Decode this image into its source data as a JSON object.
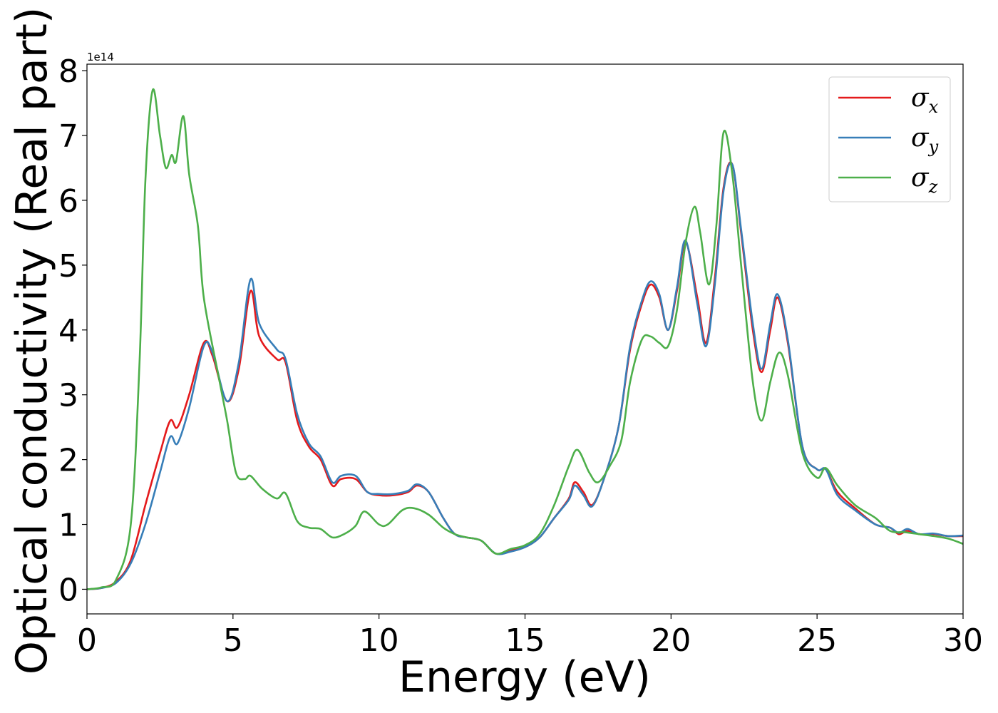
{
  "chart_data": {
    "type": "line",
    "xlabel": "Energy (eV)",
    "ylabel": "Optical conductivity (Real part)",
    "y_offset_label": "1e14",
    "xlim": [
      0,
      30
    ],
    "ylim": [
      -0.38,
      8.1
    ],
    "x_ticks": [
      0,
      5,
      10,
      15,
      20,
      25,
      30
    ],
    "y_ticks": [
      0,
      1,
      2,
      3,
      4,
      5,
      6,
      7,
      8
    ],
    "legend_position": "top-right",
    "series": [
      {
        "name": "σx",
        "symbol": "σ",
        "subscript": "x",
        "color": "#e41a1c",
        "points": [
          [
            0,
            0
          ],
          [
            0.5,
            0.02
          ],
          [
            1.0,
            0.12
          ],
          [
            1.5,
            0.45
          ],
          [
            2.0,
            1.3
          ],
          [
            2.5,
            2.1
          ],
          [
            2.85,
            2.6
          ],
          [
            3.1,
            2.5
          ],
          [
            3.5,
            3.0
          ],
          [
            4.0,
            3.8
          ],
          [
            4.3,
            3.6
          ],
          [
            4.8,
            2.9
          ],
          [
            5.2,
            3.4
          ],
          [
            5.6,
            4.6
          ],
          [
            5.9,
            3.9
          ],
          [
            6.5,
            3.55
          ],
          [
            6.8,
            3.5
          ],
          [
            7.2,
            2.6
          ],
          [
            7.6,
            2.2
          ],
          [
            8.0,
            2.0
          ],
          [
            8.4,
            1.6
          ],
          [
            8.7,
            1.7
          ],
          [
            9.2,
            1.7
          ],
          [
            9.6,
            1.5
          ],
          [
            10.0,
            1.45
          ],
          [
            10.5,
            1.45
          ],
          [
            11.0,
            1.5
          ],
          [
            11.3,
            1.6
          ],
          [
            11.7,
            1.5
          ],
          [
            12.2,
            1.1
          ],
          [
            12.6,
            0.85
          ],
          [
            13.0,
            0.8
          ],
          [
            13.5,
            0.75
          ],
          [
            14.0,
            0.55
          ],
          [
            14.5,
            0.6
          ],
          [
            15.0,
            0.65
          ],
          [
            15.5,
            0.8
          ],
          [
            16.0,
            1.1
          ],
          [
            16.5,
            1.4
          ],
          [
            16.7,
            1.65
          ],
          [
            17.0,
            1.5
          ],
          [
            17.3,
            1.3
          ],
          [
            17.7,
            1.7
          ],
          [
            18.2,
            2.5
          ],
          [
            18.6,
            3.7
          ],
          [
            19.0,
            4.4
          ],
          [
            19.3,
            4.7
          ],
          [
            19.6,
            4.5
          ],
          [
            19.9,
            4.0
          ],
          [
            20.2,
            4.6
          ],
          [
            20.5,
            5.35
          ],
          [
            20.9,
            4.5
          ],
          [
            21.2,
            3.8
          ],
          [
            21.5,
            4.8
          ],
          [
            21.8,
            6.2
          ],
          [
            22.1,
            6.55
          ],
          [
            22.4,
            5.5
          ],
          [
            22.8,
            4.0
          ],
          [
            23.1,
            3.35
          ],
          [
            23.4,
            4.0
          ],
          [
            23.65,
            4.5
          ],
          [
            24.0,
            3.8
          ],
          [
            24.5,
            2.2
          ],
          [
            25.0,
            1.85
          ],
          [
            25.3,
            1.85
          ],
          [
            25.7,
            1.5
          ],
          [
            26.3,
            1.25
          ],
          [
            27.0,
            1.0
          ],
          [
            27.5,
            0.95
          ],
          [
            27.8,
            0.85
          ],
          [
            28.1,
            0.9
          ],
          [
            28.5,
            0.85
          ],
          [
            29.0,
            0.85
          ],
          [
            29.5,
            0.82
          ],
          [
            30.0,
            0.82
          ]
        ]
      },
      {
        "name": "σy",
        "symbol": "σ",
        "subscript": "y",
        "color": "#377eb8",
        "points": [
          [
            0,
            0
          ],
          [
            0.5,
            0.02
          ],
          [
            1.0,
            0.1
          ],
          [
            1.5,
            0.4
          ],
          [
            2.0,
            1.0
          ],
          [
            2.5,
            1.8
          ],
          [
            2.85,
            2.35
          ],
          [
            3.1,
            2.25
          ],
          [
            3.5,
            2.8
          ],
          [
            4.0,
            3.75
          ],
          [
            4.3,
            3.65
          ],
          [
            4.8,
            2.9
          ],
          [
            5.2,
            3.5
          ],
          [
            5.6,
            4.78
          ],
          [
            5.9,
            4.1
          ],
          [
            6.5,
            3.7
          ],
          [
            6.8,
            3.55
          ],
          [
            7.2,
            2.7
          ],
          [
            7.6,
            2.25
          ],
          [
            8.0,
            2.05
          ],
          [
            8.4,
            1.65
          ],
          [
            8.7,
            1.75
          ],
          [
            9.2,
            1.75
          ],
          [
            9.6,
            1.5
          ],
          [
            10.0,
            1.47
          ],
          [
            10.5,
            1.47
          ],
          [
            11.0,
            1.52
          ],
          [
            11.3,
            1.62
          ],
          [
            11.7,
            1.5
          ],
          [
            12.2,
            1.1
          ],
          [
            12.6,
            0.85
          ],
          [
            13.0,
            0.8
          ],
          [
            13.5,
            0.75
          ],
          [
            14.0,
            0.55
          ],
          [
            14.5,
            0.58
          ],
          [
            15.0,
            0.65
          ],
          [
            15.5,
            0.8
          ],
          [
            16.0,
            1.1
          ],
          [
            16.5,
            1.38
          ],
          [
            16.7,
            1.6
          ],
          [
            17.0,
            1.45
          ],
          [
            17.3,
            1.28
          ],
          [
            17.7,
            1.7
          ],
          [
            18.2,
            2.5
          ],
          [
            18.6,
            3.75
          ],
          [
            19.0,
            4.45
          ],
          [
            19.3,
            4.75
          ],
          [
            19.6,
            4.55
          ],
          [
            19.9,
            4.0
          ],
          [
            20.2,
            4.65
          ],
          [
            20.5,
            5.38
          ],
          [
            20.9,
            4.4
          ],
          [
            21.2,
            3.75
          ],
          [
            21.5,
            4.7
          ],
          [
            21.8,
            6.15
          ],
          [
            22.1,
            6.55
          ],
          [
            22.4,
            5.55
          ],
          [
            22.8,
            4.1
          ],
          [
            23.1,
            3.4
          ],
          [
            23.4,
            4.1
          ],
          [
            23.65,
            4.55
          ],
          [
            24.0,
            3.85
          ],
          [
            24.5,
            2.2
          ],
          [
            25.0,
            1.85
          ],
          [
            25.3,
            1.85
          ],
          [
            25.7,
            1.45
          ],
          [
            26.3,
            1.22
          ],
          [
            27.0,
            1.0
          ],
          [
            27.5,
            0.95
          ],
          [
            27.8,
            0.87
          ],
          [
            28.1,
            0.93
          ],
          [
            28.5,
            0.85
          ],
          [
            29.0,
            0.86
          ],
          [
            29.5,
            0.82
          ],
          [
            30.0,
            0.83
          ]
        ]
      },
      {
        "name": "σz",
        "symbol": "σ",
        "subscript": "z",
        "color": "#4daf4a",
        "points": [
          [
            0,
            0
          ],
          [
            0.5,
            0.03
          ],
          [
            1.0,
            0.15
          ],
          [
            1.5,
            1.0
          ],
          [
            1.8,
            3.5
          ],
          [
            2.0,
            6.3
          ],
          [
            2.25,
            7.7
          ],
          [
            2.5,
            7.0
          ],
          [
            2.7,
            6.5
          ],
          [
            2.9,
            6.7
          ],
          [
            3.05,
            6.6
          ],
          [
            3.3,
            7.3
          ],
          [
            3.5,
            6.4
          ],
          [
            3.8,
            5.6
          ],
          [
            4.0,
            4.5
          ],
          [
            4.5,
            3.3
          ],
          [
            4.8,
            2.6
          ],
          [
            5.1,
            1.8
          ],
          [
            5.4,
            1.7
          ],
          [
            5.6,
            1.75
          ],
          [
            6.0,
            1.55
          ],
          [
            6.5,
            1.4
          ],
          [
            6.8,
            1.48
          ],
          [
            7.2,
            1.05
          ],
          [
            7.6,
            0.95
          ],
          [
            8.0,
            0.93
          ],
          [
            8.4,
            0.8
          ],
          [
            8.8,
            0.85
          ],
          [
            9.2,
            0.98
          ],
          [
            9.5,
            1.2
          ],
          [
            10.0,
            1.0
          ],
          [
            10.3,
            1.0
          ],
          [
            10.8,
            1.22
          ],
          [
            11.2,
            1.25
          ],
          [
            11.7,
            1.15
          ],
          [
            12.2,
            0.95
          ],
          [
            12.6,
            0.85
          ],
          [
            13.0,
            0.8
          ],
          [
            13.5,
            0.75
          ],
          [
            14.0,
            0.55
          ],
          [
            14.5,
            0.62
          ],
          [
            15.0,
            0.68
          ],
          [
            15.5,
            0.85
          ],
          [
            16.0,
            1.3
          ],
          [
            16.5,
            1.9
          ],
          [
            16.8,
            2.15
          ],
          [
            17.2,
            1.8
          ],
          [
            17.5,
            1.65
          ],
          [
            17.9,
            1.9
          ],
          [
            18.3,
            2.3
          ],
          [
            18.6,
            3.2
          ],
          [
            19.0,
            3.85
          ],
          [
            19.3,
            3.9
          ],
          [
            19.6,
            3.8
          ],
          [
            19.9,
            3.75
          ],
          [
            20.2,
            4.3
          ],
          [
            20.5,
            5.35
          ],
          [
            20.8,
            5.9
          ],
          [
            21.0,
            5.5
          ],
          [
            21.3,
            4.7
          ],
          [
            21.55,
            5.6
          ],
          [
            21.8,
            7.05
          ],
          [
            22.1,
            6.4
          ],
          [
            22.4,
            5.0
          ],
          [
            22.8,
            3.2
          ],
          [
            23.1,
            2.6
          ],
          [
            23.4,
            3.2
          ],
          [
            23.7,
            3.65
          ],
          [
            24.0,
            3.3
          ],
          [
            24.5,
            2.1
          ],
          [
            25.0,
            1.72
          ],
          [
            25.3,
            1.87
          ],
          [
            25.7,
            1.6
          ],
          [
            26.3,
            1.3
          ],
          [
            27.0,
            1.1
          ],
          [
            27.5,
            0.9
          ],
          [
            28.0,
            0.88
          ],
          [
            28.5,
            0.85
          ],
          [
            29.0,
            0.82
          ],
          [
            29.5,
            0.78
          ],
          [
            30.0,
            0.7
          ]
        ]
      }
    ]
  }
}
